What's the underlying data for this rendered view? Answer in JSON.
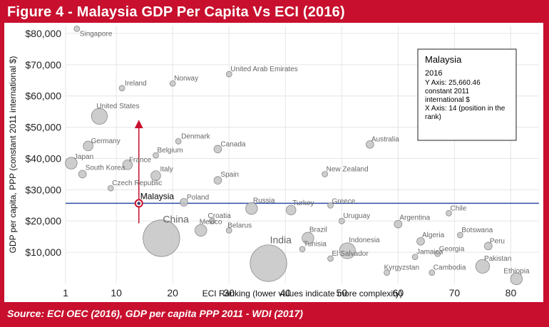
{
  "header": {
    "title": "Figure 4 - Malaysia GDP Per Capita Vs ECI (2016)"
  },
  "footer": {
    "source": "Source: ECI OEC (2016), GDP per capita PPP 2011 - WDI (2017)"
  },
  "colors": {
    "frame": "#c8102e",
    "reference_line": "#2d4fa8",
    "arrow": "#c8102e",
    "bubble_fill": "#c4c4c4",
    "bubble_stroke": "#8a8a8a"
  },
  "tooltip": {
    "country": "Malaysia",
    "year": "2016",
    "lines": [
      "Y Axis: 25,660.46",
      "constant 2011",
      "international $",
      "X Axis: 14 (position in the",
      "rank)"
    ]
  },
  "chart_data": {
    "type": "scatter",
    "xlabel": "ECI Ranking (lower values indicate more complexity)",
    "ylabel": "GDP per capita, PPP (constant 2011 international $)",
    "xlim": [
      1,
      85
    ],
    "ylim": [
      0,
      82500
    ],
    "xticks": [
      1,
      10,
      20,
      30,
      40,
      50,
      60,
      70,
      80
    ],
    "yticks": [
      10000,
      20000,
      30000,
      40000,
      50000,
      60000,
      70000,
      80000
    ],
    "ytick_labels": [
      "$10,000",
      "$20,000",
      "$30,000",
      "$40,000",
      "$50,000",
      "$60,000",
      "$70,000",
      "$80,000"
    ],
    "grid": true,
    "reference_line_y": 25660.46,
    "highlight": "Malaysia",
    "points": [
      {
        "name": "Singapore",
        "x": 3,
        "y": 81500,
        "size": 1
      },
      {
        "name": "Ireland",
        "x": 11,
        "y": 62500,
        "size": 1
      },
      {
        "name": "Norway",
        "x": 20,
        "y": 64000,
        "size": 1
      },
      {
        "name": "United Arab Emirates",
        "x": 30,
        "y": 67000,
        "size": 1
      },
      {
        "name": "United States",
        "x": 7,
        "y": 53500,
        "size": 6
      },
      {
        "name": "Germany",
        "x": 5,
        "y": 44000,
        "size": 3
      },
      {
        "name": "Denmark",
        "x": 21,
        "y": 45500,
        "size": 1
      },
      {
        "name": "Canada",
        "x": 28,
        "y": 43000,
        "size": 2
      },
      {
        "name": "Australia",
        "x": 55,
        "y": 44500,
        "size": 2
      },
      {
        "name": "Belgium",
        "x": 17,
        "y": 41000,
        "size": 1
      },
      {
        "name": "Japan",
        "x": 2,
        "y": 38500,
        "size": 4
      },
      {
        "name": "France",
        "x": 12,
        "y": 38000,
        "size": 3
      },
      {
        "name": "South Korea",
        "x": 4,
        "y": 35000,
        "size": 2
      },
      {
        "name": "Italy",
        "x": 17,
        "y": 34500,
        "size": 3
      },
      {
        "name": "New Zealand",
        "x": 47,
        "y": 35000,
        "size": 1
      },
      {
        "name": "Spain",
        "x": 28,
        "y": 33000,
        "size": 2
      },
      {
        "name": "Czech Republic",
        "x": 9,
        "y": 30500,
        "size": 1
      },
      {
        "name": "Poland",
        "x": 22,
        "y": 26000,
        "size": 2
      },
      {
        "name": "Russia",
        "x": 34,
        "y": 24000,
        "size": 4
      },
      {
        "name": "Turkey",
        "x": 41,
        "y": 23500,
        "size": 3
      },
      {
        "name": "Greece",
        "x": 48,
        "y": 25000,
        "size": 1
      },
      {
        "name": "Chile",
        "x": 69,
        "y": 22500,
        "size": 1
      },
      {
        "name": "Croatia",
        "x": 27,
        "y": 20000,
        "size": 1
      },
      {
        "name": "Uruguay",
        "x": 50,
        "y": 20000,
        "size": 1
      },
      {
        "name": "Argentina",
        "x": 60,
        "y": 19000,
        "size": 2
      },
      {
        "name": "Mexico",
        "x": 25,
        "y": 17000,
        "size": 4
      },
      {
        "name": "Belarus",
        "x": 30,
        "y": 17000,
        "size": 1
      },
      {
        "name": "China",
        "x": 18,
        "y": 14500,
        "size": 16
      },
      {
        "name": "Botswana",
        "x": 71,
        "y": 15500,
        "size": 1
      },
      {
        "name": "Brazil",
        "x": 44,
        "y": 14500,
        "size": 4
      },
      {
        "name": "Algeria",
        "x": 64,
        "y": 13500,
        "size": 2
      },
      {
        "name": "Peru",
        "x": 76,
        "y": 12000,
        "size": 2
      },
      {
        "name": "Tunisia",
        "x": 43,
        "y": 11000,
        "size": 1
      },
      {
        "name": "Indonesia",
        "x": 51,
        "y": 10500,
        "size": 6
      },
      {
        "name": "Georgia",
        "x": 67,
        "y": 9500,
        "size": 1
      },
      {
        "name": "Jamaica",
        "x": 63,
        "y": 8500,
        "size": 1
      },
      {
        "name": "El Salvador",
        "x": 48,
        "y": 8000,
        "size": 1
      },
      {
        "name": "India",
        "x": 37,
        "y": 6500,
        "size": 16
      },
      {
        "name": "Pakistan",
        "x": 75,
        "y": 5500,
        "size": 5
      },
      {
        "name": "Cambodia",
        "x": 66,
        "y": 3500,
        "size": 1
      },
      {
        "name": "Kyrgyzstan",
        "x": 58,
        "y": 3500,
        "size": 1
      },
      {
        "name": "Ethiopia",
        "x": 81,
        "y": 1500,
        "size": 4
      },
      {
        "name": "Malaysia",
        "x": 14,
        "y": 25660.46,
        "size": 3
      }
    ]
  }
}
